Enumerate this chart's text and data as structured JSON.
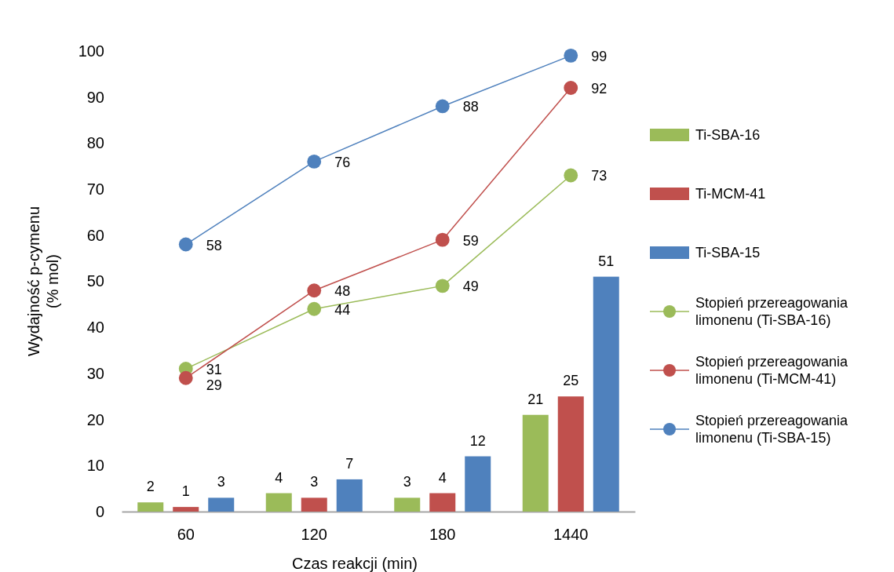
{
  "chart_data": {
    "type": "bar",
    "xlabel": "Czas reakcji (min)",
    "ylabel": "Wydajność p-cymenu (% mol)",
    "categories": [
      "60",
      "120",
      "180",
      "1440"
    ],
    "ylim": [
      0,
      100
    ],
    "yticks": [
      0,
      10,
      20,
      30,
      40,
      50,
      60,
      70,
      80,
      90,
      100
    ],
    "grid": false,
    "legend": "right",
    "data_labels": true,
    "marker": "circle",
    "series": [
      {
        "name": "Ti-SBA-16",
        "color": "#9bbb59",
        "values": [
          2,
          4,
          3,
          21
        ]
      },
      {
        "name": "Ti-MCM-41",
        "color": "#c0504d",
        "values": [
          1,
          3,
          4,
          25
        ]
      },
      {
        "name": "Ti-SBA-15",
        "color": "#4f81bd",
        "values": [
          3,
          7,
          12,
          51
        ]
      },
      {
        "name": "Stopień przereagowania limonenu (Ti-SBA-16)",
        "type": "line",
        "color": "#9bbb59",
        "values": [
          31,
          44,
          49,
          73
        ]
      },
      {
        "name": "Stopień przereagowania limonenu (Ti-MCM-41)",
        "type": "line",
        "color": "#c0504d",
        "values": [
          29,
          48,
          59,
          92
        ]
      },
      {
        "name": "Stopień przereagowania limonenu (Ti-SBA-15)",
        "type": "line",
        "color": "#4f81bd",
        "values": [
          58,
          76,
          88,
          99
        ]
      }
    ]
  }
}
